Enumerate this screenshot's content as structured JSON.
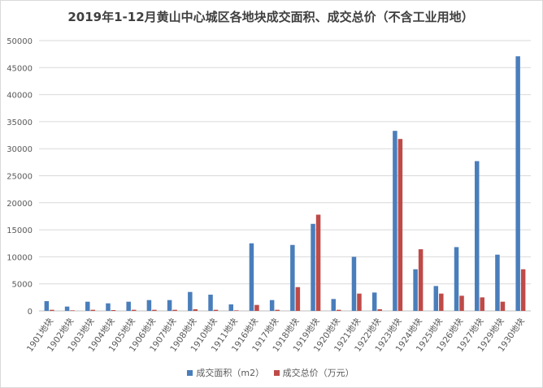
{
  "chart_data": {
    "type": "bar",
    "title": "2019年1-12月黄山中心城区各地块成交面积、成交总价（不含工业用地）",
    "categories": [
      "1901地块",
      "1902地块",
      "1903地块",
      "1904地块",
      "1905地块",
      "1906地块",
      "1907地块",
      "1908地块",
      "1910地块",
      "1911地块",
      "1916地块",
      "1917地块",
      "1918地块",
      "1919地块",
      "1920地块",
      "1921地块",
      "1922地块",
      "1923地块",
      "1924地块",
      "1925地块",
      "1926地块",
      "1927地块",
      "1929地块",
      "1930地块"
    ],
    "series": [
      {
        "name": "成交面积（m2）",
        "color": "#4a7ebb",
        "values": [
          1800,
          800,
          1700,
          1400,
          1700,
          2000,
          2000,
          3500,
          3000,
          1200,
          12500,
          2000,
          12200,
          16100,
          2200,
          10000,
          3400,
          33300,
          7700,
          4600,
          11800,
          27700,
          10400,
          47100
        ]
      },
      {
        "name": "成交总价（万元）",
        "color": "#be4b48",
        "values": [
          200,
          100,
          200,
          150,
          200,
          200,
          200,
          300,
          200,
          100,
          1100,
          200,
          4400,
          17800,
          200,
          3200,
          300,
          31800,
          11400,
          3200,
          2800,
          2500,
          1700,
          7700
        ]
      }
    ],
    "y_ticks": [
      "0",
      "5000",
      "10000",
      "15000",
      "20000",
      "25000",
      "30000",
      "35000",
      "40000",
      "45000",
      "50000"
    ],
    "ylim": [
      0,
      50000
    ],
    "grid": true,
    "legend": "bottom"
  }
}
